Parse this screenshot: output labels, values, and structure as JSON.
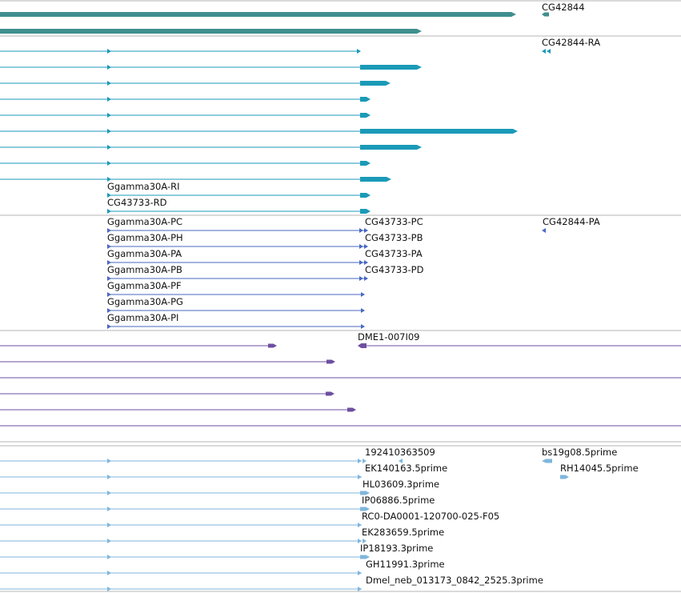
{
  "colors": {
    "gene": "#3f8e8e",
    "mrna": "#1a9ab8",
    "cds": "#4a68c2",
    "cdna": "#6e4fa0",
    "est": "#7fb6dc",
    "separator": "#b4b4b4"
  },
  "gene_track": {
    "labels": [
      "CG42844"
    ]
  },
  "mrna_track": {
    "labels": [
      "CG42844-RA",
      "Ggamma30A-RI",
      "CG43733-RD"
    ]
  },
  "cds_track": {
    "labels": [
      "Ggamma30A-PC",
      "CG43733-PC",
      "CG42844-PA",
      "Ggamma30A-PH",
      "CG43733-PB",
      "Ggamma30A-PA",
      "CG43733-PA",
      "Ggamma30A-PB",
      "CG43733-PD",
      "Ggamma30A-PF",
      "Ggamma30A-PG",
      "Ggamma30A-PI"
    ]
  },
  "cdna_track": {
    "labels": [
      "DME1-007I09"
    ]
  },
  "est_track": {
    "labels": [
      "192410363509",
      "bs19g08.5prime",
      "EK140163.5prime",
      "RH14045.5prime",
      "HL03609.3prime",
      "IP06886.5prime",
      "RC0-DA0001-120700-025-F05",
      "EK283659.5prime",
      "IP18193.3prime",
      "GH11991.3prime",
      "Dmel_neb_013173_0842_2525.3prime"
    ]
  }
}
